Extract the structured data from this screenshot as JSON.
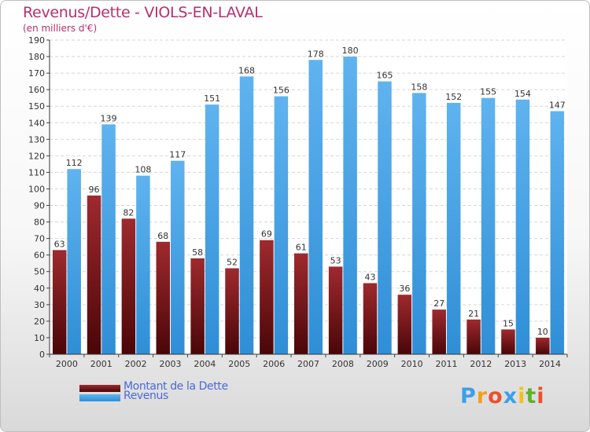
{
  "title": "Revenus/Dette - VIOLS-EN-LAVAL",
  "subtitle": "(en milliers d'€)",
  "logo_text": [
    "P",
    "r",
    "o",
    "x",
    "i",
    "t",
    "i"
  ],
  "logo_colors": [
    "#3aa0e8",
    "#f0a020",
    "#e85030",
    "#3aa0e8",
    "#f0c020",
    "#60b030",
    "#e85030"
  ],
  "chart_data": {
    "type": "bar",
    "title": "Revenus/Dette - VIOLS-EN-LAVAL",
    "subtitle": "(en milliers d'€)",
    "categories": [
      "2000",
      "2001",
      "2002",
      "2003",
      "2004",
      "2005",
      "2006",
      "2007",
      "2008",
      "2009",
      "2010",
      "2011",
      "2012",
      "2013",
      "2014"
    ],
    "series": [
      {
        "name": "Montant de la Dette",
        "color": "#8a2024",
        "values": [
          63,
          96,
          82,
          68,
          58,
          52,
          69,
          61,
          53,
          43,
          36,
          27,
          21,
          15,
          10
        ]
      },
      {
        "name": "Revenus",
        "color": "#4aa3e6",
        "values": [
          112,
          139,
          108,
          117,
          151,
          168,
          156,
          178,
          180,
          165,
          158,
          152,
          155,
          154,
          147
        ]
      }
    ],
    "ylim": [
      0,
      190
    ],
    "yticks": [
      0,
      10,
      20,
      30,
      40,
      50,
      60,
      70,
      80,
      90,
      100,
      110,
      120,
      130,
      140,
      150,
      160,
      170,
      180,
      190
    ],
    "grid": true,
    "legend": "bottom-left"
  }
}
